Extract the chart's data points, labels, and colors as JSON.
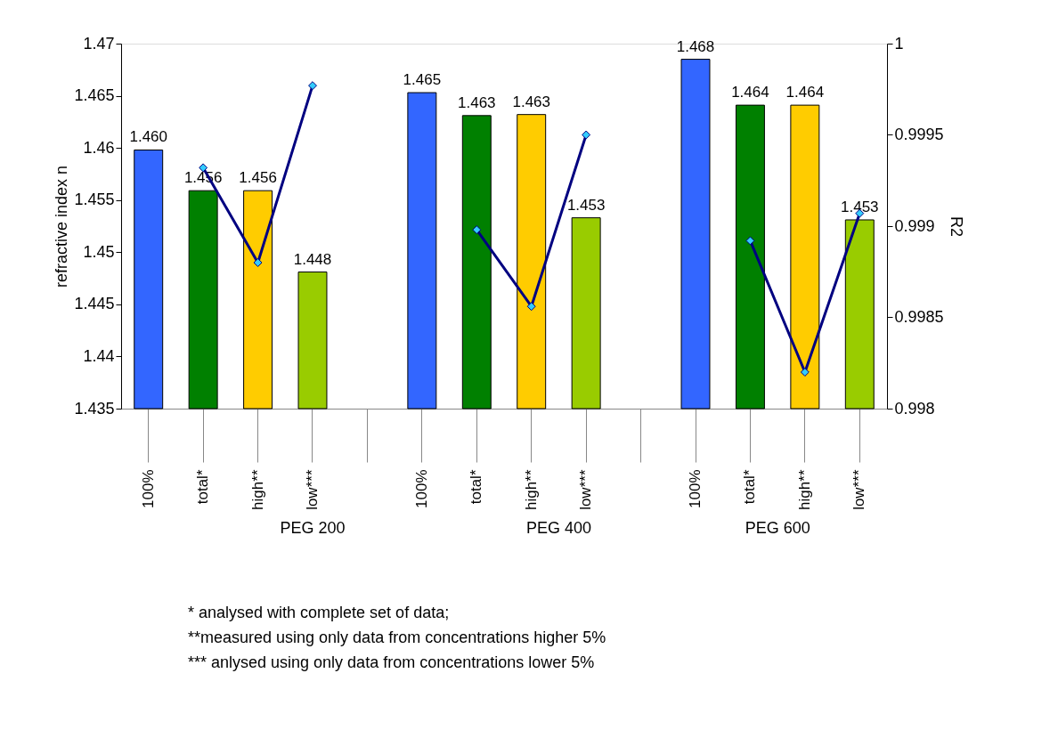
{
  "chart_data": {
    "type": "bar",
    "categories": [
      "100%",
      "total*",
      "high**",
      "low***",
      null,
      "100%",
      "total*",
      "high**",
      "low***",
      null,
      "100%",
      "total*",
      "high**",
      "low***"
    ],
    "ylabel": "refractive index n",
    "y2label": "R2",
    "ylim": [
      1.435,
      1.47
    ],
    "yticks": [
      1.435,
      1.44,
      1.445,
      1.45,
      1.455,
      1.46,
      1.465,
      1.47
    ],
    "y2lim": [
      0.998,
      1
    ],
    "y2ticks": [
      0.998,
      0.9985,
      0.999,
      0.9995,
      1
    ],
    "grid": false,
    "series": [
      {
        "colors": [
          "#3366ff",
          "#008000",
          "#ffcc00",
          "#99cc00",
          null,
          "#3366ff",
          "#008000",
          "#ffcc00",
          "#99cc00",
          null,
          "#3366ff",
          "#008000",
          "#ffcc00",
          "#99cc00"
        ],
        "values": [
          1.4598,
          1.4559,
          1.4559,
          1.4481,
          null,
          1.4653,
          1.4631,
          1.4632,
          1.4533,
          null,
          1.4685,
          1.4641,
          1.4641,
          1.4531
        ],
        "value_labels": [
          "1.460",
          "1.456",
          "1.456",
          "1.448",
          null,
          "1.465",
          "1.463",
          "1.463",
          "1.453",
          null,
          "1.468",
          "1.464",
          "1.464",
          "1.453"
        ]
      },
      {
        "type": "line",
        "axis": "y2",
        "color": "#000080",
        "marker": "diamond",
        "values": [
          null,
          0.99932,
          0.9988,
          0.99977,
          null,
          null,
          0.99898,
          0.99856,
          0.9995,
          null,
          null,
          0.99892,
          0.9982,
          0.99907
        ]
      }
    ],
    "annotations": [
      "PEG 200",
      "PEG 400",
      "PEG 600",
      "* analysed with complete set of data;",
      "**measured using only data from concentrations higher 5%",
      "*** anlysed using only data from concentrations lower 5%"
    ]
  }
}
